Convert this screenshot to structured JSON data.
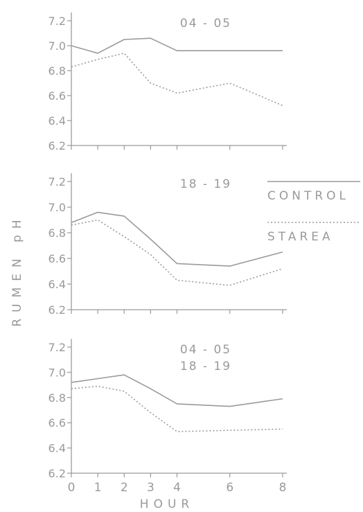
{
  "chart_data": [
    {
      "type": "line",
      "title": "04 - 05",
      "x": [
        0,
        1,
        2,
        3,
        4,
        6,
        8
      ],
      "ylim": [
        6.2,
        7.2
      ],
      "yticks": [
        "6.2",
        "6.4",
        "6.6",
        "6.8",
        "7.0",
        "7.2"
      ],
      "series": [
        {
          "name": "CONTROL",
          "style": "solid",
          "values": [
            7.0,
            6.94,
            7.05,
            7.06,
            6.96,
            6.96,
            6.96
          ]
        },
        {
          "name": "STAREA",
          "style": "dotted",
          "values": [
            6.83,
            6.89,
            6.94,
            6.7,
            6.62,
            6.7,
            6.52
          ]
        }
      ]
    },
    {
      "type": "line",
      "title": "18 - 19",
      "x": [
        0,
        1,
        2,
        3,
        4,
        6,
        8
      ],
      "ylim": [
        6.2,
        7.2
      ],
      "yticks": [
        "6.2",
        "6.4",
        "6.6",
        "6.8",
        "7.0",
        "7.2"
      ],
      "series": [
        {
          "name": "CONTROL",
          "style": "solid",
          "values": [
            6.88,
            6.96,
            6.93,
            6.75,
            6.56,
            6.54,
            6.65
          ]
        },
        {
          "name": "STAREA",
          "style": "dotted",
          "values": [
            6.86,
            6.9,
            6.77,
            6.63,
            6.43,
            6.39,
            6.52
          ]
        }
      ]
    },
    {
      "type": "line",
      "title": "04 - 05",
      "subtitle": "18 - 19",
      "x": [
        0,
        1,
        2,
        3,
        4,
        6,
        8
      ],
      "ylim": [
        6.2,
        7.2
      ],
      "yticks": [
        "6.2",
        "6.4",
        "6.6",
        "6.8",
        "7.0",
        "7.2"
      ],
      "xticks": [
        "0",
        "1",
        "2",
        "3",
        "4",
        "6",
        "8"
      ],
      "xlabel": "HOUR",
      "series": [
        {
          "name": "CONTROL",
          "style": "solid",
          "values": [
            6.92,
            6.95,
            6.98,
            6.87,
            6.75,
            6.73,
            6.79
          ]
        },
        {
          "name": "STAREA",
          "style": "dotted",
          "values": [
            6.87,
            6.89,
            6.85,
            6.68,
            6.53,
            6.54,
            6.55
          ]
        }
      ]
    }
  ],
  "ylabel": "RUMEN pH",
  "legend": {
    "placement": "right, middle panel",
    "items": [
      {
        "label": "CONTROL",
        "style": "solid"
      },
      {
        "label": "STAREA",
        "style": "dotted"
      }
    ]
  },
  "colors": {
    "line": "#9a9a9a",
    "text": "#9a9a9a",
    "background": "#ffffff"
  }
}
